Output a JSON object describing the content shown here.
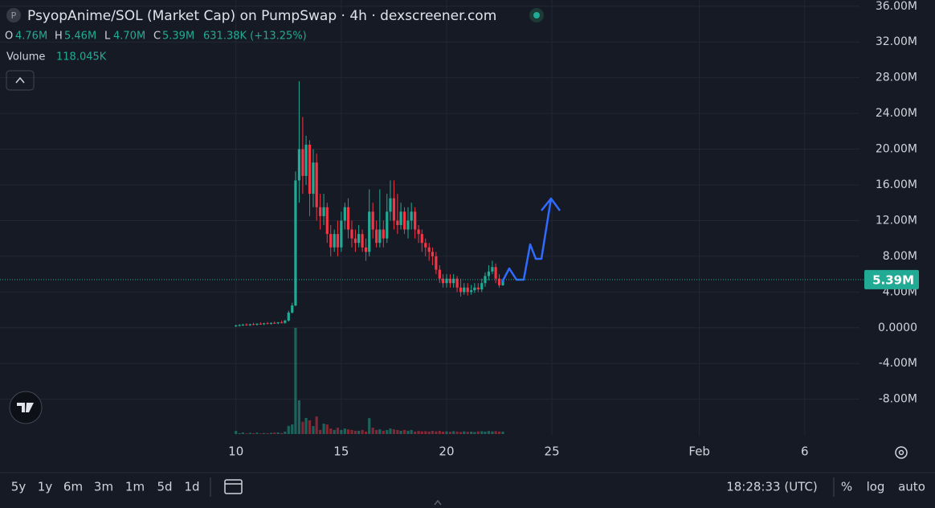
{
  "ui": {
    "symbol_icon": "P",
    "title": "PsyopAnime/SOL (Market Cap) on PumpSwap · 4h · dexscreener.com",
    "ohlc": [
      {
        "label": "O",
        "value": "4.76M"
      },
      {
        "label": "H",
        "value": "5.46M"
      },
      {
        "label": "L",
        "value": "4.70M"
      },
      {
        "label": "C",
        "value": "5.39M"
      }
    ],
    "change": "631.38K (+13.25%)",
    "volume_label": "Volume",
    "volume_value": "118.045K",
    "ranges": [
      "5y",
      "1y",
      "6m",
      "3m",
      "1m",
      "5d",
      "1d"
    ],
    "clock": "18:28:33 (UTC)",
    "options": [
      "%",
      "log",
      "auto"
    ]
  },
  "chart_data": {
    "type": "candlestick",
    "up_color": "#22ab94",
    "down_color": "#f23645",
    "grid": true,
    "xlim": [
      -1.2,
      39.6
    ],
    "xticks": [
      10,
      15,
      20,
      25,
      {
        "value": 32,
        "label": "Feb"
      },
      {
        "value": 37,
        "label": "6"
      }
    ],
    "ylim": [
      -11.9,
      36.7
    ],
    "yticks": [
      {
        "value": 36,
        "label": "36.00M"
      },
      {
        "value": 32,
        "label": "32.00M"
      },
      {
        "value": 28,
        "label": "28.00M"
      },
      {
        "value": 24,
        "label": "24.00M"
      },
      {
        "value": 20,
        "label": "20.00M"
      },
      {
        "value": 16,
        "label": "16.00M"
      },
      {
        "value": 12,
        "label": "12.00M"
      },
      {
        "value": 8,
        "label": "8.00M"
      },
      {
        "value": 4,
        "label": "4.00M"
      },
      {
        "value": 0,
        "label": "0.0000"
      },
      {
        "value": -4,
        "label": "-4.00M"
      },
      {
        "value": -8,
        "label": "-8.00M"
      }
    ],
    "volume_ylim": [
      0,
      11800
    ],
    "last_price": {
      "value": 5.39,
      "label": "5.39M"
    },
    "x": [
      10,
      10.17,
      10.33,
      10.5,
      10.67,
      10.83,
      11,
      11.17,
      11.33,
      11.5,
      11.67,
      11.83,
      12,
      12.17,
      12.33,
      12.5,
      12.67,
      12.83,
      13,
      13.17,
      13.33,
      13.5,
      13.67,
      13.83,
      14,
      14.17,
      14.33,
      14.5,
      14.67,
      14.83,
      15,
      15.17,
      15.33,
      15.5,
      15.67,
      15.83,
      16,
      16.17,
      16.33,
      16.5,
      16.67,
      16.83,
      17,
      17.17,
      17.33,
      17.5,
      17.67,
      17.83,
      18,
      18.17,
      18.33,
      18.5,
      18.67,
      18.83,
      19,
      19.17,
      19.33,
      19.5,
      19.67,
      19.83,
      20,
      20.17,
      20.33,
      20.5,
      20.67,
      20.83,
      21,
      21.17,
      21.33,
      21.5,
      21.67,
      21.83,
      22,
      22.17,
      22.33,
      22.5,
      22.67
    ],
    "open": [
      0.2,
      0.25,
      0.3,
      0.35,
      0.3,
      0.4,
      0.35,
      0.45,
      0.4,
      0.5,
      0.45,
      0.55,
      0.5,
      0.6,
      0.55,
      0.8,
      1.7,
      2.5,
      16.5,
      20,
      17,
      20.5,
      15,
      18.5,
      13.5,
      12.5,
      13.5,
      10.5,
      9,
      10.5,
      9,
      12,
      13.5,
      11,
      10,
      9.5,
      10.5,
      9,
      8.5,
      13,
      11,
      9.5,
      11,
      10,
      13,
      14.5,
      12,
      11.5,
      13,
      11,
      12,
      13,
      11,
      10.5,
      9.5,
      9,
      8.5,
      8,
      6.5,
      5.5,
      5,
      5.5,
      5,
      5.5,
      4.5,
      4,
      4.5,
      4,
      4.2,
      4.5,
      4.3,
      5,
      5.8,
      6.3,
      6.8,
      5.5,
      4.76
    ],
    "high": [
      0.35,
      0.4,
      0.45,
      0.5,
      0.45,
      0.55,
      0.5,
      0.6,
      0.55,
      0.65,
      0.6,
      0.7,
      0.65,
      0.8,
      0.9,
      1.9,
      2.8,
      17.5,
      27.6,
      23.6,
      21.5,
      21,
      20,
      19.5,
      15,
      15,
      14,
      11.5,
      11,
      12,
      13,
      14,
      14.5,
      12,
      11,
      11.5,
      11,
      10,
      15.5,
      14,
      12,
      15.5,
      12,
      15,
      16.5,
      16.5,
      15,
      14,
      13.5,
      13.5,
      14,
      13.5,
      11.5,
      11,
      10,
      9.5,
      9,
      8.5,
      7,
      6,
      6,
      6,
      6,
      5.8,
      5.5,
      5,
      5,
      4.8,
      5,
      5,
      5.5,
      6.2,
      7,
      7.5,
      7.2,
      6,
      5.46
    ],
    "low": [
      0.1,
      0.15,
      0.2,
      0.25,
      0.2,
      0.3,
      0.25,
      0.35,
      0.3,
      0.4,
      0.35,
      0.45,
      0.4,
      0.5,
      0.45,
      0.7,
      1.6,
      2.4,
      14,
      15,
      16,
      12.5,
      13.5,
      12,
      11,
      11.5,
      9.5,
      8,
      8.5,
      8,
      8.5,
      11,
      10,
      9,
      8.5,
      9,
      8.5,
      7.5,
      8,
      10,
      9,
      9,
      9,
      9.5,
      12,
      11,
      10.5,
      11,
      10.5,
      10,
      11,
      10,
      9.5,
      8.5,
      8,
      7.5,
      7,
      6,
      5,
      4.5,
      4.5,
      4.5,
      4.5,
      4,
      3.5,
      3.7,
      3.6,
      3.7,
      3.9,
      4,
      4,
      4.6,
      5.3,
      6,
      5,
      4.5,
      4.7
    ],
    "close": [
      0.25,
      0.3,
      0.35,
      0.3,
      0.4,
      0.35,
      0.45,
      0.4,
      0.5,
      0.45,
      0.55,
      0.5,
      0.6,
      0.55,
      0.8,
      1.7,
      2.5,
      16.5,
      20,
      17,
      20.5,
      15,
      18.5,
      13.5,
      12.5,
      13.5,
      10.5,
      9,
      10.5,
      9,
      12,
      13.5,
      11,
      10,
      9.5,
      10.5,
      9,
      8.5,
      13,
      11,
      9.5,
      11,
      10,
      13,
      14.5,
      12,
      11.5,
      13,
      11,
      12,
      13,
      11,
      10.5,
      9.5,
      9,
      8.5,
      8,
      6.5,
      5.5,
      5,
      5.5,
      5,
      5.5,
      4.5,
      4,
      4.5,
      4,
      4.2,
      4.5,
      4.3,
      5,
      5.8,
      6.3,
      6.8,
      5.5,
      4.76,
      5.39
    ],
    "volume": [
      150,
      40,
      80,
      30,
      60,
      40,
      70,
      30,
      50,
      40,
      60,
      70,
      80,
      50,
      120,
      400,
      470,
      5200,
      1650,
      600,
      790,
      670,
      390,
      860,
      200,
      510,
      470,
      270,
      200,
      310,
      200,
      270,
      230,
      200,
      160,
      160,
      200,
      120,
      780,
      310,
      200,
      230,
      160,
      200,
      270,
      230,
      200,
      160,
      200,
      160,
      200,
      120,
      150,
      130,
      140,
      120,
      160,
      130,
      150,
      120,
      130,
      110,
      140,
      120,
      100,
      130,
      110,
      120,
      100,
      130,
      140,
      120,
      150,
      130,
      140,
      120,
      118.045
    ]
  }
}
